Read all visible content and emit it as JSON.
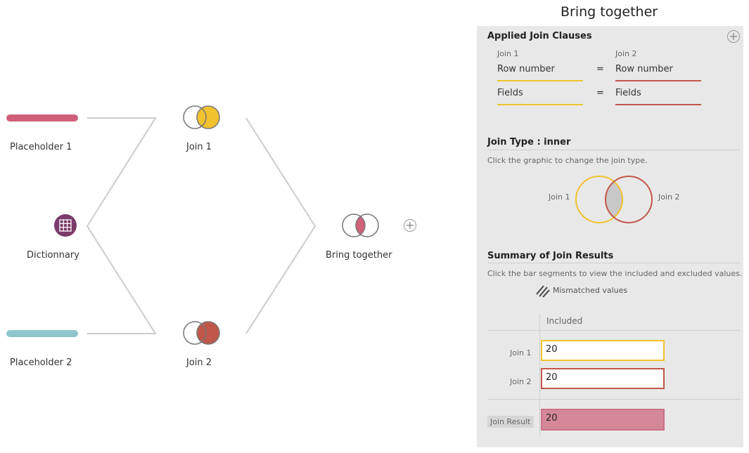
{
  "flow": {
    "nodes": [
      {
        "label": "Placeholder 1",
        "color": "#d0607a"
      },
      {
        "label": "Dictionnary",
        "color": "#7a3a6a",
        "icon": "table-grid-icon"
      },
      {
        "label": "Placeholder 2",
        "color": "#8ec6cc"
      },
      {
        "label": "Join 1",
        "color": "#f2c22e",
        "icon": "right-join-icon"
      },
      {
        "label": "Join 2",
        "color": "#c0574a",
        "icon": "right-join-icon"
      },
      {
        "label": "Bring together",
        "color": "#d0607a",
        "icon": "inner-join-icon"
      }
    ]
  },
  "panel": {
    "title": "Bring together",
    "applied_join_clauses": "Applied Join Clauses",
    "join1_header": "Join 1",
    "join2_header": "Join 2",
    "clauses": [
      {
        "left": "Row number",
        "op": "=",
        "right": "Row number"
      },
      {
        "left": "Fields",
        "op": "=",
        "right": "Fields"
      }
    ],
    "join_type_title": "Join Type : inner",
    "join_type_hint": "Click the graphic to change the join type.",
    "venn_left": "Join 1",
    "venn_right": "Join 2",
    "summary_title": "Summary of Join Results",
    "summary_hint": "Click the bar segments to view the included and excluded values.",
    "mismatched_label": "Mismatched values",
    "included_header": "Included",
    "rows": [
      {
        "label": "Join 1",
        "value": "20",
        "color": "#f2c22e"
      },
      {
        "label": "Join 2",
        "value": "20",
        "color": "#c0574a"
      }
    ],
    "result": {
      "label": "Join Result",
      "value": "20",
      "color": "#d0607a"
    }
  },
  "colors": {
    "join1": "#f2c22e",
    "join2": "#c0574a",
    "result": "#d0607a",
    "placeholder2": "#8ec6cc",
    "dictionary": "#7a3a6a"
  }
}
